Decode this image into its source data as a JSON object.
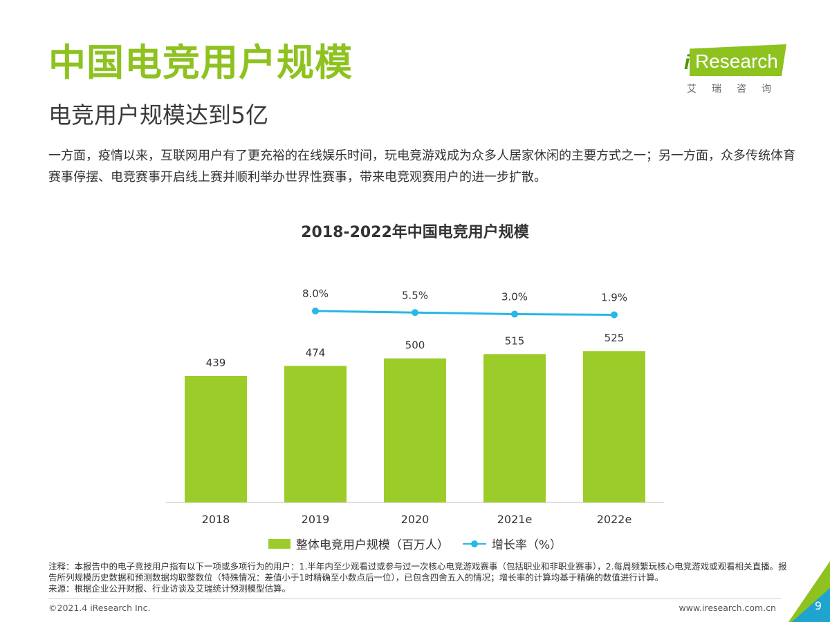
{
  "page": {
    "title": "中国电竞用户规模",
    "subtitle": "电竞用户规模达到5亿",
    "description": "一方面，疫情以来，互联网用户有了更充裕的在线娱乐时间，玩电竞游戏成为众多人居家休闲的主要方式之一；另一方面，众多传统体育赛事停摆、电竞赛事开启线上赛并顺利举办世界性赛事，带来电竞观赛用户的进一步扩散。",
    "note": "注释：本报告中的电子竞技用户指有以下一项或多项行为的用户：1.半年内至少观看过或参与过一次核心电竞游戏赛事（包括职业和非职业赛事），2.每周频繁玩核心电竞游戏或观看相关直播。报告所列规模历史数据和预测数据均取整数位（特殊情况：差值小于1时精确至小数点后一位），已包含四舍五入的情况；增长率的计算均基于精确的数值进行计算。",
    "source": "来源：根据企业公开财报、行业访谈及艾瑞统计预测模型估算。",
    "copyright": "©2021.4 iResearch Inc.",
    "website": "www.iresearch.com.cn",
    "page_number": "9"
  },
  "logo": {
    "i": "i",
    "word": "Research",
    "cn": "艾瑞咨询"
  },
  "colors": {
    "accent_green": "#8dc21f",
    "bar_green": "#9ccc2a",
    "line_blue": "#28b7e6"
  },
  "chart_data": {
    "type": "bar",
    "title": "2018-2022年中国电竞用户规模",
    "categories": [
      "2018",
      "2019",
      "2020",
      "2021e",
      "2022e"
    ],
    "series": [
      {
        "name": "整体电竞用户规模（百万人）",
        "type": "bar",
        "values": [
          439,
          474,
          500,
          515,
          525
        ],
        "labels": [
          "439",
          "474",
          "500",
          "515",
          "525"
        ]
      },
      {
        "name": "增长率（%）",
        "type": "line",
        "values": [
          null,
          8.0,
          5.5,
          3.0,
          1.9
        ],
        "labels": [
          "",
          "8.0%",
          "5.5%",
          "3.0%",
          "1.9%"
        ]
      }
    ],
    "grid": false,
    "legend": "bottom"
  }
}
